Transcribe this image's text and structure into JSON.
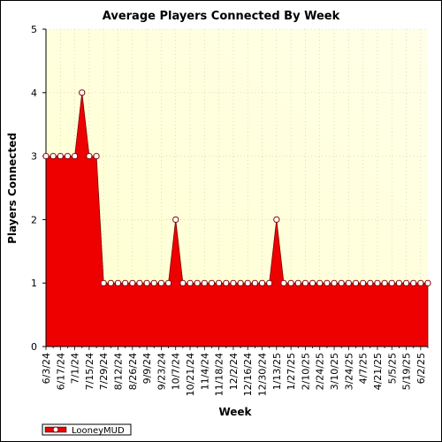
{
  "chart_data": {
    "type": "area",
    "title": "Average Players Connected By Week",
    "xlabel": "Week",
    "ylabel": "Players Connected",
    "ylim": [
      0,
      5
    ],
    "yticks": [
      "0",
      "1",
      "2",
      "3",
      "4",
      "5"
    ],
    "xtick_labels": [
      "6/3/24",
      "6/17/24",
      "7/1/24",
      "7/15/24",
      "7/29/24",
      "8/12/24",
      "8/26/24",
      "9/9/24",
      "9/23/24",
      "10/7/24",
      "10/21/24",
      "11/4/24",
      "11/18/24",
      "12/2/24",
      "12/16/24",
      "12/30/24",
      "1/13/25",
      "1/27/25",
      "2/10/25",
      "2/24/25",
      "3/10/25",
      "3/24/25",
      "4/7/25",
      "4/21/25",
      "5/5/25",
      "5/19/25",
      "6/2/25"
    ],
    "series": [
      {
        "name": "LooneyMUD",
        "color": "#ee0000",
        "values": [
          3,
          3,
          3,
          3,
          3,
          4,
          3,
          3,
          1,
          1,
          1,
          1,
          1,
          1,
          1,
          1,
          1,
          1,
          2,
          1,
          1,
          1,
          1,
          1,
          1,
          1,
          1,
          1,
          1,
          1,
          1,
          1,
          2,
          1,
          1,
          1,
          1,
          1,
          1,
          1,
          1,
          1,
          1,
          1,
          1,
          1,
          1,
          1,
          1,
          1,
          1,
          1,
          1,
          1
        ]
      }
    ],
    "grid": true,
    "legend": "bottom-left"
  }
}
